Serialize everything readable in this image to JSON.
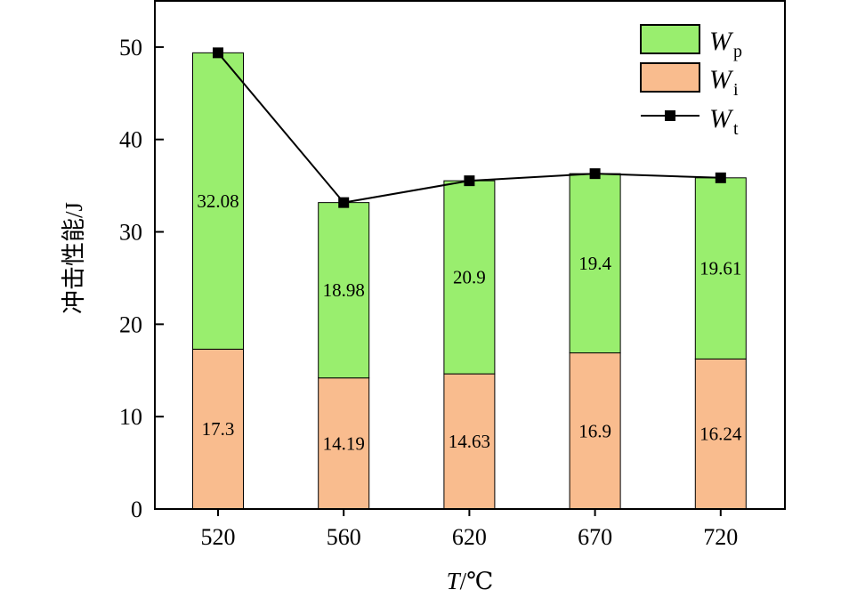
{
  "chart_data": {
    "type": "bar",
    "stacked": true,
    "title": "",
    "xlabel": "T/℃",
    "xlabel_italic_part": "T",
    "xlabel_unit": "/℃",
    "ylabel": "冲击性能/J",
    "ylim": [
      0,
      55
    ],
    "yticks": [
      "0",
      "10",
      "20",
      "30",
      "40",
      "50"
    ],
    "categories": [
      "520",
      "560",
      "620",
      "670",
      "720"
    ],
    "grid": false,
    "legend_position": "top-right",
    "series": [
      {
        "name": "Wi",
        "base": "W",
        "sub": "i",
        "color": "#F9BC8E",
        "values": [
          17.3,
          14.19,
          14.63,
          16.9,
          16.24
        ],
        "labels": [
          "17.3",
          "14.19",
          "14.63",
          "16.9",
          "16.24"
        ]
      },
      {
        "name": "Wp",
        "base": "W",
        "sub": "p",
        "color": "#99EE6E",
        "values": [
          32.08,
          18.98,
          20.9,
          19.4,
          19.61
        ],
        "labels": [
          "32.08",
          "18.98",
          "20.9",
          "19.4",
          "19.61"
        ]
      },
      {
        "name": "Wt",
        "base": "W",
        "sub": "t",
        "type": "line",
        "color": "#000000",
        "marker": "square",
        "values": [
          49.38,
          33.17,
          35.53,
          36.3,
          35.85
        ]
      }
    ]
  }
}
